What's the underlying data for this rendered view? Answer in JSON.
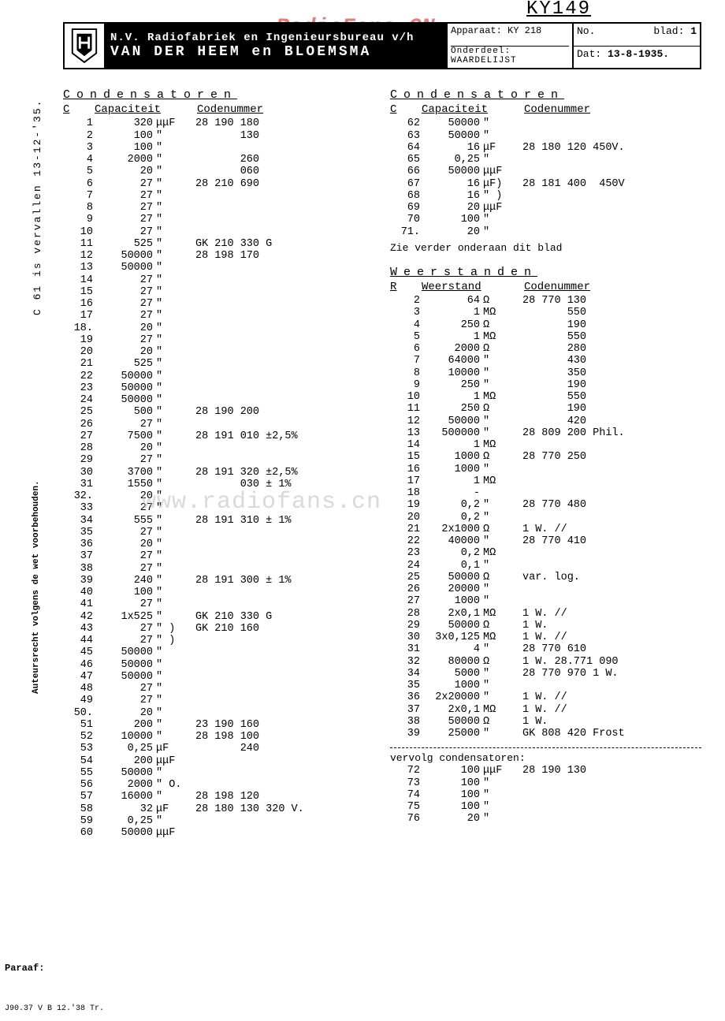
{
  "watermark1": "RadioFans.CN",
  "watermark2": "www.radiofans.cn",
  "model_no": "KY149",
  "header": {
    "company_line1": "N.V. Radiofabriek en Ingenieursbureau v/h",
    "company_line2": "VAN DER HEEM en BLOEMSMA",
    "apparaat_label": "Apparaat:",
    "apparaat_value": "KY 218",
    "onderdeel_label": "Onderdeel:",
    "onderdeel_value": "WAARDELIJST",
    "no_label": "No.",
    "blad_label": "blad:",
    "blad_value": "1",
    "dat_label": "Dat:",
    "dat_value": "13-8-1935."
  },
  "side_note1": "C 61 is vervallen 13-12-'35.",
  "side_note2": "Auteursrecht volgens de wet voorbehouden.",
  "paraaf": "Paraaf:",
  "footer_stamp": "J90.37 V B 12.'38 Tr.",
  "cond_title": "Condensatoren",
  "cond_headers": [
    "C",
    "Capaciteit",
    "Codenummer"
  ],
  "cond_left": [
    [
      "1",
      "320",
      "μμF",
      "28 190 180"
    ],
    [
      "2",
      "100",
      "\"",
      "       130"
    ],
    [
      "3",
      "100",
      "\"",
      ""
    ],
    [
      "4",
      "2000",
      "\"",
      "       260"
    ],
    [
      "5",
      "20",
      "\"",
      "       060"
    ],
    [
      "6",
      "27",
      "\"",
      "28 210 690"
    ],
    [
      "7",
      "27",
      "\"",
      ""
    ],
    [
      "8",
      "27",
      "\"",
      ""
    ],
    [
      "9",
      "27",
      "\"",
      ""
    ],
    [
      "10",
      "27",
      "\"",
      ""
    ],
    [
      "11",
      "525",
      "\"",
      "GK 210 330 G"
    ],
    [
      "12",
      "50000",
      "\"",
      "28 198 170"
    ],
    [
      "13",
      "50000",
      "\"",
      ""
    ],
    [
      "14",
      "27",
      "\"",
      ""
    ],
    [
      "15",
      "27",
      "\"",
      ""
    ],
    [
      "16",
      "27",
      "\"",
      ""
    ],
    [
      "17",
      "27",
      "\"",
      ""
    ],
    [
      "18.",
      "20",
      "\"",
      ""
    ],
    [
      "19",
      "27",
      "\"",
      ""
    ],
    [
      "20",
      "20",
      "\"",
      ""
    ],
    [
      "21",
      "525",
      "\"",
      ""
    ],
    [
      "22",
      "50000",
      "\"",
      ""
    ],
    [
      "23",
      "50000",
      "\"",
      ""
    ],
    [
      "24",
      "50000",
      "\"",
      ""
    ],
    [
      "25",
      "500",
      "\"",
      "28 190 200"
    ],
    [
      "26",
      "27",
      "\"",
      ""
    ],
    [
      "27",
      "7500",
      "\"",
      "28 191 010 ±2,5%"
    ],
    [
      "28",
      "20",
      "\"",
      ""
    ],
    [
      "29",
      "27",
      "\"",
      ""
    ],
    [
      "30",
      "3700",
      "\"",
      "28 191 320 ±2,5%"
    ],
    [
      "31",
      "1550",
      "\"",
      "       030 ± 1%"
    ],
    [
      "32.",
      "20",
      "\"",
      ""
    ],
    [
      "33",
      "27",
      "\"",
      ""
    ],
    [
      "34",
      "555",
      "\"",
      "28 191 310 ± 1%"
    ],
    [
      "35",
      "27",
      "\"",
      ""
    ],
    [
      "36",
      "20",
      "\"",
      ""
    ],
    [
      "37",
      "27",
      "\"",
      ""
    ],
    [
      "38",
      "27",
      "\"",
      ""
    ],
    [
      "39",
      "240",
      "\"",
      "28 191 300 ± 1%"
    ],
    [
      "40",
      "100",
      "\"",
      ""
    ],
    [
      "41",
      "27",
      "\"",
      ""
    ],
    [
      "42",
      "1x525",
      "\"",
      "GK 210 330 G"
    ],
    [
      "43",
      "27",
      "\" )",
      "GK 210 160"
    ],
    [
      "44",
      "27",
      "\" )",
      ""
    ],
    [
      "45",
      "50000",
      "\"",
      ""
    ],
    [
      "46",
      "50000",
      "\"",
      ""
    ],
    [
      "47",
      "50000",
      "\"",
      ""
    ],
    [
      "48",
      "27",
      "\"",
      ""
    ],
    [
      "49",
      "27",
      "\"",
      ""
    ],
    [
      "50.",
      "20",
      "\"",
      ""
    ],
    [
      "51",
      "200",
      "\"",
      "23 190 160"
    ],
    [
      "52",
      "10000",
      "\"",
      "28 198 100"
    ],
    [
      "53",
      "0,25",
      "μF",
      "       240"
    ],
    [
      "54",
      "200",
      "μμF",
      ""
    ],
    [
      "55",
      "50000",
      "\"",
      ""
    ],
    [
      "56",
      "2000",
      "\" O.",
      ""
    ],
    [
      "57",
      "16000",
      "\"",
      "28 198 120"
    ],
    [
      "58",
      "32",
      "μF",
      "28 180 130 320 V."
    ],
    [
      "59",
      "0,25",
      "\"",
      ""
    ],
    [
      "60",
      "50000",
      "μμF",
      ""
    ]
  ],
  "cond_right_headers": [
    "C",
    "Capaciteit",
    "Codenummer"
  ],
  "cond_right": [
    [
      "62",
      "50000",
      "\"",
      ""
    ],
    [
      "63",
      "50000",
      "\"",
      ""
    ],
    [
      "64",
      "16",
      "μF",
      "28 180 120 450V."
    ],
    [
      "65",
      "0,25",
      "\"",
      ""
    ],
    [
      "66",
      "50000",
      "μμF",
      ""
    ],
    [
      "67",
      "16",
      "μF)",
      "28 181 400  450V"
    ],
    [
      "68",
      "16",
      "\" )",
      ""
    ],
    [
      "69",
      "20",
      "μμF",
      ""
    ],
    [
      "70",
      "100",
      "\"",
      ""
    ],
    [
      "71.",
      "20",
      "\"",
      ""
    ]
  ],
  "cond_note": "Zie verder onderaan dit blad",
  "res_title": "Weerstanden",
  "res_headers": [
    "R",
    "Weerstand",
    "Codenummer"
  ],
  "res_rows": [
    [
      "2",
      "64",
      "Ω",
      "28 770 130"
    ],
    [
      "3",
      "1",
      "MΩ",
      "       550"
    ],
    [
      "4",
      "250",
      "Ω",
      "       190"
    ],
    [
      "5",
      "1",
      "MΩ",
      "       550"
    ],
    [
      "6",
      "2000",
      "Ω",
      "       280"
    ],
    [
      "7",
      "64000",
      "\"",
      "       430"
    ],
    [
      "8",
      "10000",
      "\"",
      "       350"
    ],
    [
      "9",
      "250",
      "\"",
      "       190"
    ],
    [
      "10",
      "1",
      "MΩ",
      "       550"
    ],
    [
      "11",
      "250",
      "Ω",
      "       190"
    ],
    [
      "12",
      "50000",
      "\"",
      "       420"
    ],
    [
      "13",
      "500000",
      "\"",
      "28 809 200 Phil."
    ],
    [
      "14",
      "1",
      "MΩ",
      ""
    ],
    [
      "15",
      "1000",
      "Ω",
      "28 770 250"
    ],
    [
      "16",
      "1000",
      "\"",
      ""
    ],
    [
      "17",
      "1",
      "MΩ",
      ""
    ],
    [
      "18",
      "-",
      "",
      ""
    ],
    [
      "19",
      "0,2",
      "\"",
      "28 770 480"
    ],
    [
      "20",
      "0,2",
      "\"",
      ""
    ],
    [
      "21",
      "2x1000",
      "Ω",
      "1 W. //"
    ],
    [
      "22",
      "40000",
      "\"",
      "28 770 410"
    ],
    [
      "23",
      "0,2",
      "MΩ",
      ""
    ],
    [
      "24",
      "0,1",
      "\"",
      ""
    ],
    [
      "25",
      "50000",
      "Ω",
      "var. log."
    ],
    [
      "26",
      "20000",
      "\"",
      ""
    ],
    [
      "27",
      "1000",
      "\"",
      ""
    ],
    [
      "28",
      "2x0,1",
      "MΩ",
      "1 W. //"
    ],
    [
      "29",
      "50000",
      "Ω",
      "1 W."
    ],
    [
      "30",
      "3x0,125",
      "MΩ",
      "1 W. //"
    ],
    [
      "31",
      "4",
      "\"",
      "28 770 610"
    ],
    [
      "32",
      "80000",
      "Ω",
      "1 W. 28.771 090"
    ],
    [
      "34",
      "5000",
      "\"",
      "28 770 970 1 W."
    ],
    [
      "35",
      "1000",
      "\"",
      ""
    ],
    [
      "36",
      "2x20000",
      "\"",
      "1 W. //"
    ],
    [
      "37",
      "2x0,1",
      "MΩ",
      "1 W. //"
    ],
    [
      "38",
      "50000",
      "Ω",
      "1 W."
    ],
    [
      "39",
      "25000",
      "\"",
      "GK 808 420 Frost"
    ]
  ],
  "vervolg_title": "vervolg condensatoren:",
  "vervolg_rows": [
    [
      "72",
      "100",
      "μμF",
      "28 190 130"
    ],
    [
      "73",
      "100",
      "\"",
      ""
    ],
    [
      "74",
      "100",
      "\"",
      ""
    ],
    [
      "75",
      "100",
      "\"",
      ""
    ],
    [
      "76",
      "20",
      "\"",
      ""
    ]
  ]
}
